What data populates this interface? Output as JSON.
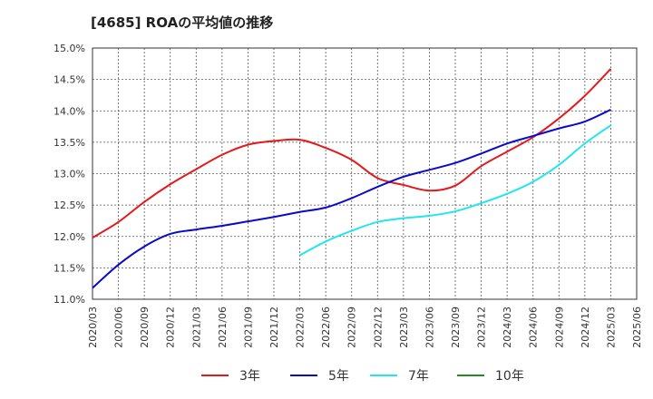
{
  "chart_data": {
    "type": "line",
    "title": "[4685]  ROAの平均値の推移",
    "xlabel": "",
    "ylabel": "",
    "ylim": [
      11.0,
      15.0
    ],
    "y_ticks": [
      "11.0%",
      "11.5%",
      "12.0%",
      "12.5%",
      "13.0%",
      "13.5%",
      "14.0%",
      "14.5%",
      "15.0%"
    ],
    "x_ticks": [
      "2020/03",
      "2020/06",
      "2020/09",
      "2020/12",
      "2021/03",
      "2021/06",
      "2021/09",
      "2021/12",
      "2022/03",
      "2022/06",
      "2022/09",
      "2022/12",
      "2023/03",
      "2023/06",
      "2023/09",
      "2023/12",
      "2024/03",
      "2024/06",
      "2024/09",
      "2024/12",
      "2025/03",
      "2025/06"
    ],
    "grid": true,
    "legend_position": "bottom",
    "series": [
      {
        "name": "3年",
        "color": "#e31a1c",
        "x": [
          "2020/03",
          "2020/06",
          "2020/09",
          "2020/12",
          "2021/03",
          "2021/06",
          "2021/09",
          "2021/12",
          "2022/03",
          "2022/06",
          "2022/09",
          "2022/12",
          "2023/03",
          "2023/06",
          "2023/09",
          "2023/12",
          "2024/03",
          "2024/06",
          "2024/09",
          "2024/12",
          "2025/03"
        ],
        "values": [
          11.98,
          12.23,
          12.55,
          12.83,
          13.07,
          13.3,
          13.46,
          13.52,
          13.54,
          13.41,
          13.22,
          12.93,
          12.82,
          12.73,
          12.81,
          13.12,
          13.35,
          13.58,
          13.88,
          14.24,
          14.67
        ]
      },
      {
        "name": "5年",
        "color": "#0a0acd",
        "x": [
          "2020/03",
          "2020/06",
          "2020/09",
          "2020/12",
          "2021/03",
          "2021/06",
          "2021/09",
          "2021/12",
          "2022/03",
          "2022/06",
          "2022/09",
          "2022/12",
          "2023/03",
          "2023/06",
          "2023/09",
          "2023/12",
          "2024/03",
          "2024/06",
          "2024/09",
          "2024/12",
          "2025/03"
        ],
        "values": [
          11.18,
          11.55,
          11.84,
          12.04,
          12.11,
          12.17,
          12.24,
          12.31,
          12.39,
          12.46,
          12.61,
          12.79,
          12.95,
          13.06,
          13.17,
          13.32,
          13.48,
          13.6,
          13.72,
          13.83,
          14.02
        ]
      },
      {
        "name": "7年",
        "color": "#22e5ee",
        "x": [
          "2022/03",
          "2022/06",
          "2022/09",
          "2022/12",
          "2023/03",
          "2023/06",
          "2023/09",
          "2023/12",
          "2024/03",
          "2024/06",
          "2024/09",
          "2024/12",
          "2025/03"
        ],
        "values": [
          11.7,
          11.92,
          12.09,
          12.23,
          12.29,
          12.33,
          12.4,
          12.53,
          12.68,
          12.87,
          13.14,
          13.48,
          13.77
        ]
      },
      {
        "name": "10年",
        "color": "#228b22",
        "x": [],
        "values": []
      }
    ]
  }
}
